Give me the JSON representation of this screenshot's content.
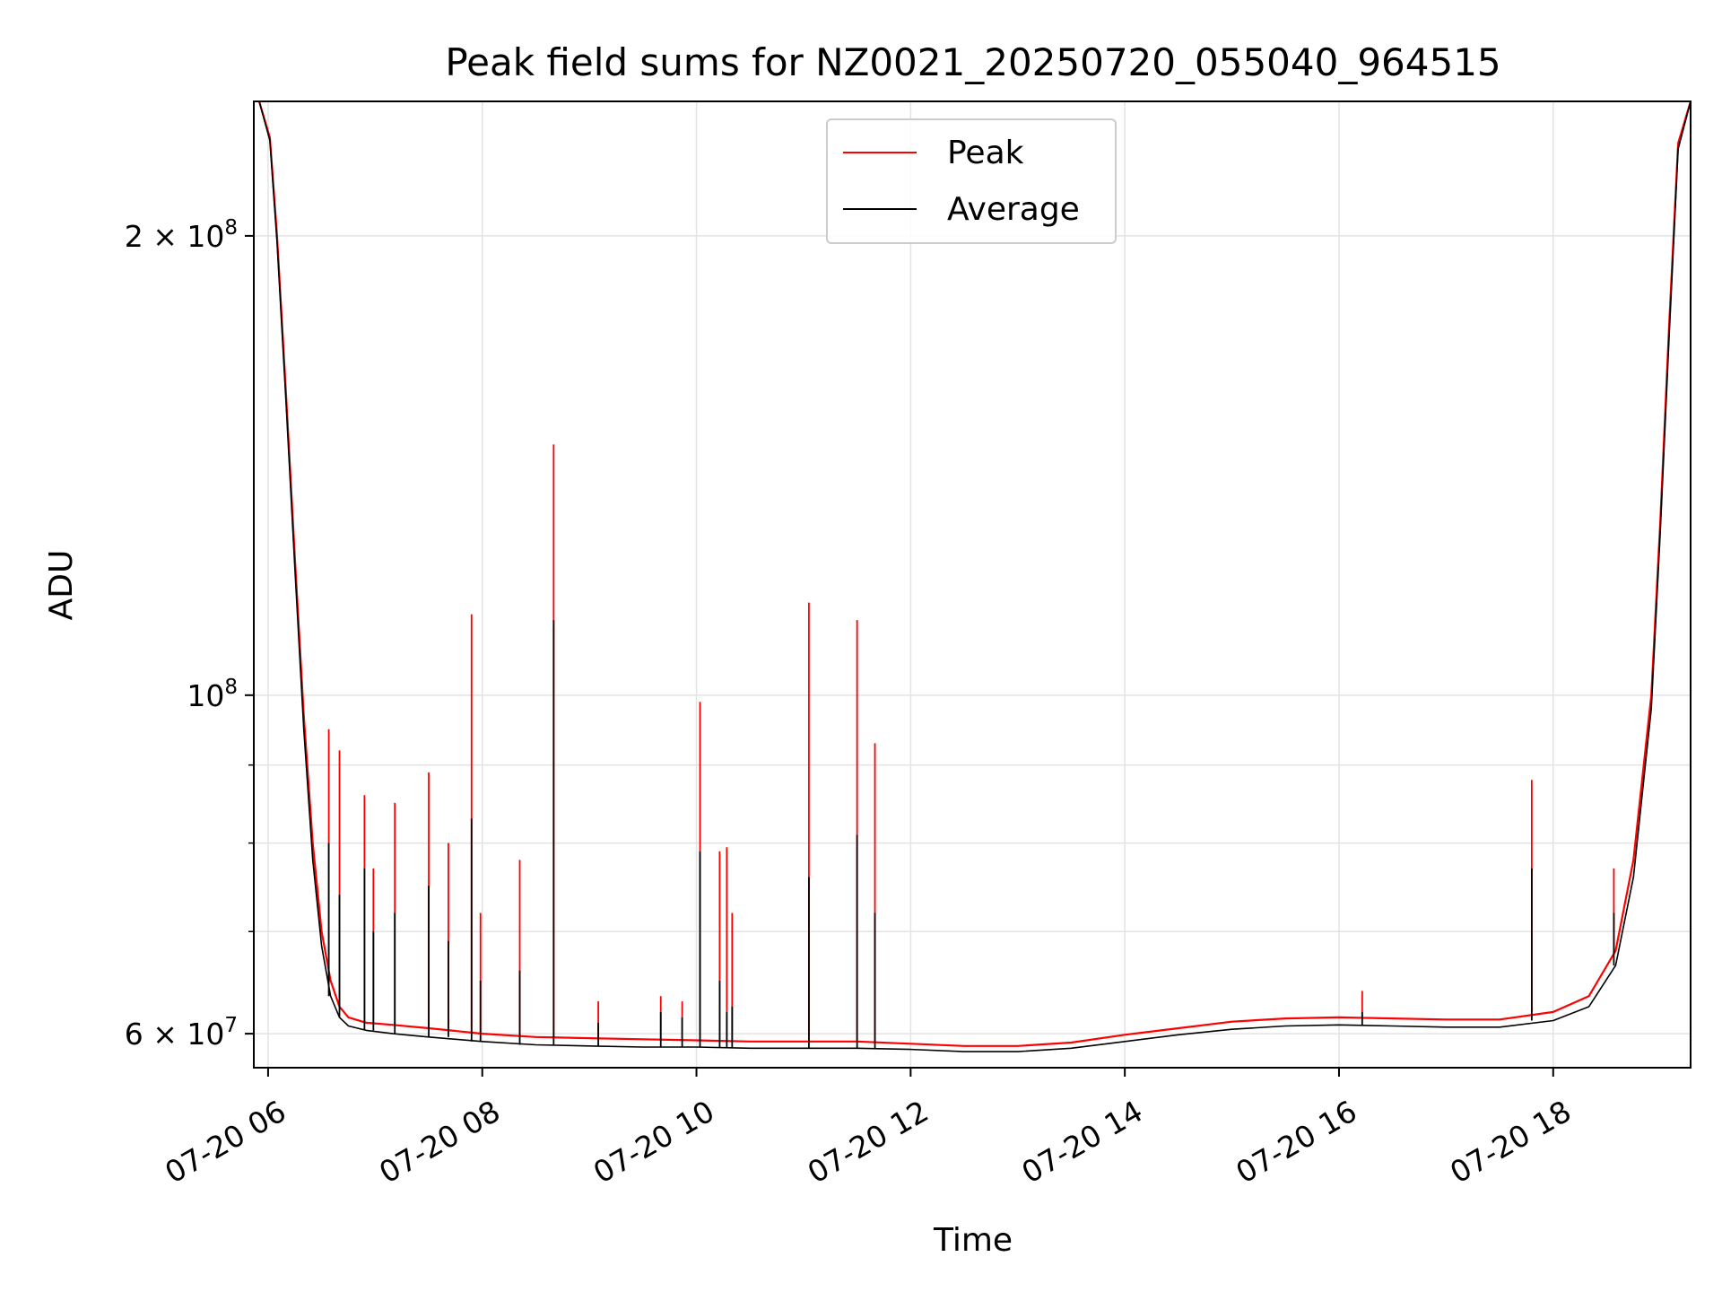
{
  "chart_data": {
    "type": "line",
    "title": "Peak field sums for NZ0021_20250720_055040_964515",
    "xlabel": "Time",
    "ylabel": "ADU",
    "yscale": "log",
    "grid": true,
    "legend_position": "top-center",
    "xlim": [
      "07-20 05:52",
      "07-20 19:17"
    ],
    "ylim": [
      57000000,
      245000000
    ],
    "x_ticks": [
      {
        "value": "07-20 06:00",
        "label": "07-20 06"
      },
      {
        "value": "07-20 08:00",
        "label": "07-20 08"
      },
      {
        "value": "07-20 10:00",
        "label": "07-20 10"
      },
      {
        "value": "07-20 12:00",
        "label": "07-20 12"
      },
      {
        "value": "07-20 14:00",
        "label": "07-20 14"
      },
      {
        "value": "07-20 16:00",
        "label": "07-20 16"
      },
      {
        "value": "07-20 18:00",
        "label": "07-20 18"
      }
    ],
    "y_ticks": [
      {
        "value": 60000000,
        "label": "6 × 10⁷",
        "base": "6 × 10",
        "exp": "7"
      },
      {
        "value": 100000000,
        "label": "10⁸",
        "base": "10",
        "exp": "8"
      },
      {
        "value": 200000000,
        "label": "2 × 10⁸",
        "base": "2 × 10",
        "exp": "8"
      }
    ],
    "y_minor_ticks": [
      70000000,
      80000000,
      90000000
    ],
    "series": [
      {
        "name": "Peak",
        "color": "#ff0000",
        "x": [
          "07-20 05:55",
          "07-20 06:01",
          "07-20 06:05",
          "07-20 06:10",
          "07-20 06:15",
          "07-20 06:20",
          "07-20 06:25",
          "07-20 06:30",
          "07-20 06:35",
          "07-20 06:40",
          "07-20 06:45",
          "07-20 06:55",
          "07-20 07:10",
          "07-20 07:30",
          "07-20 08:00",
          "07-20 08:30",
          "07-20 09:00",
          "07-20 09:30",
          "07-20 10:00",
          "07-20 10:30",
          "07-20 11:00",
          "07-20 11:30",
          "07-20 12:00",
          "07-20 12:30",
          "07-20 13:00",
          "07-20 13:30",
          "07-20 14:00",
          "07-20 14:30",
          "07-20 15:00",
          "07-20 15:30",
          "07-20 16:00",
          "07-20 16:30",
          "07-20 17:00",
          "07-20 17:30",
          "07-20 18:00",
          "07-20 18:20",
          "07-20 18:35",
          "07-20 18:45",
          "07-20 18:55",
          "07-20 19:00",
          "07-20 19:05",
          "07-20 19:10",
          "07-20 19:17"
        ],
        "values": [
          245000000,
          232000000,
          200000000,
          158000000,
          123000000,
          97000000,
          80000000,
          70000000,
          65000000,
          62500000,
          61500000,
          61000000,
          60800000,
          60500000,
          60000000,
          59700000,
          59600000,
          59500000,
          59400000,
          59300000,
          59300000,
          59300000,
          59100000,
          58900000,
          58900000,
          59200000,
          59900000,
          60500000,
          61100000,
          61400000,
          61500000,
          61400000,
          61300000,
          61300000,
          62000000,
          63500000,
          68000000,
          78000000,
          100000000,
          130000000,
          175000000,
          230000000,
          245000000
        ]
      },
      {
        "name": "Average",
        "color": "#000000",
        "x": [
          "07-20 05:55",
          "07-20 06:01",
          "07-20 06:05",
          "07-20 06:10",
          "07-20 06:15",
          "07-20 06:20",
          "07-20 06:25",
          "07-20 06:30",
          "07-20 06:35",
          "07-20 06:40",
          "07-20 06:45",
          "07-20 06:55",
          "07-20 07:10",
          "07-20 07:30",
          "07-20 08:00",
          "07-20 08:30",
          "07-20 09:00",
          "07-20 09:30",
          "07-20 10:00",
          "07-20 10:30",
          "07-20 11:00",
          "07-20 11:30",
          "07-20 12:00",
          "07-20 12:30",
          "07-20 13:00",
          "07-20 13:30",
          "07-20 14:00",
          "07-20 14:30",
          "07-20 15:00",
          "07-20 15:30",
          "07-20 16:00",
          "07-20 16:30",
          "07-20 17:00",
          "07-20 17:30",
          "07-20 18:00",
          "07-20 18:20",
          "07-20 18:35",
          "07-20 18:45",
          "07-20 18:55",
          "07-20 19:00",
          "07-20 19:05",
          "07-20 19:10",
          "07-20 19:17"
        ],
        "values": [
          245000000,
          231000000,
          198000000,
          156000000,
          121000000,
          95000000,
          78000000,
          68500000,
          63500000,
          61500000,
          60700000,
          60300000,
          60000000,
          59700000,
          59300000,
          59000000,
          58900000,
          58800000,
          58800000,
          58700000,
          58700000,
          58700000,
          58600000,
          58400000,
          58400000,
          58700000,
          59300000,
          59900000,
          60400000,
          60700000,
          60800000,
          60700000,
          60600000,
          60600000,
          61200000,
          62500000,
          66500000,
          76000000,
          98000000,
          128000000,
          172000000,
          228000000,
          245000000
        ]
      }
    ],
    "spikes": [
      {
        "x": "07-20 06:34",
        "peak": 95000000,
        "average": 80000000
      },
      {
        "x": "07-20 06:40",
        "peak": 92000000,
        "average": 74000000
      },
      {
        "x": "07-20 06:54",
        "peak": 86000000,
        "average": 77000000
      },
      {
        "x": "07-20 06:59",
        "peak": 77000000,
        "average": 70000000
      },
      {
        "x": "07-20 07:11",
        "peak": 85000000,
        "average": 72000000
      },
      {
        "x": "07-20 07:30",
        "peak": 89000000,
        "average": 75000000
      },
      {
        "x": "07-20 07:41",
        "peak": 80000000,
        "average": 69000000
      },
      {
        "x": "07-20 07:54",
        "peak": 113000000,
        "average": 83000000
      },
      {
        "x": "07-20 07:59",
        "peak": 72000000,
        "average": 65000000
      },
      {
        "x": "07-20 08:21",
        "peak": 78000000,
        "average": 66000000
      },
      {
        "x": "07-20 08:40",
        "peak": 146000000,
        "average": 112000000
      },
      {
        "x": "07-20 09:05",
        "peak": 63000000,
        "average": 61000000
      },
      {
        "x": "07-20 09:40",
        "peak": 63500000,
        "average": 62000000
      },
      {
        "x": "07-20 09:52",
        "peak": 63000000,
        "average": 61500000
      },
      {
        "x": "07-20 10:02",
        "peak": 99000000,
        "average": 79000000
      },
      {
        "x": "07-20 10:13",
        "peak": 79000000,
        "average": 65000000
      },
      {
        "x": "07-20 10:17",
        "peak": 79500000,
        "average": 62000000
      },
      {
        "x": "07-20 10:20",
        "peak": 72000000,
        "average": 62500000
      },
      {
        "x": "07-20 11:03",
        "peak": 115000000,
        "average": 76000000
      },
      {
        "x": "07-20 11:30",
        "peak": 112000000,
        "average": 81000000
      },
      {
        "x": "07-20 11:40",
        "peak": 93000000,
        "average": 72000000
      },
      {
        "x": "07-20 16:13",
        "peak": 64000000,
        "average": 62000000
      },
      {
        "x": "07-20 17:48",
        "peak": 88000000,
        "average": 77000000
      },
      {
        "x": "07-20 18:34",
        "peak": 77000000,
        "average": 72000000
      }
    ]
  }
}
